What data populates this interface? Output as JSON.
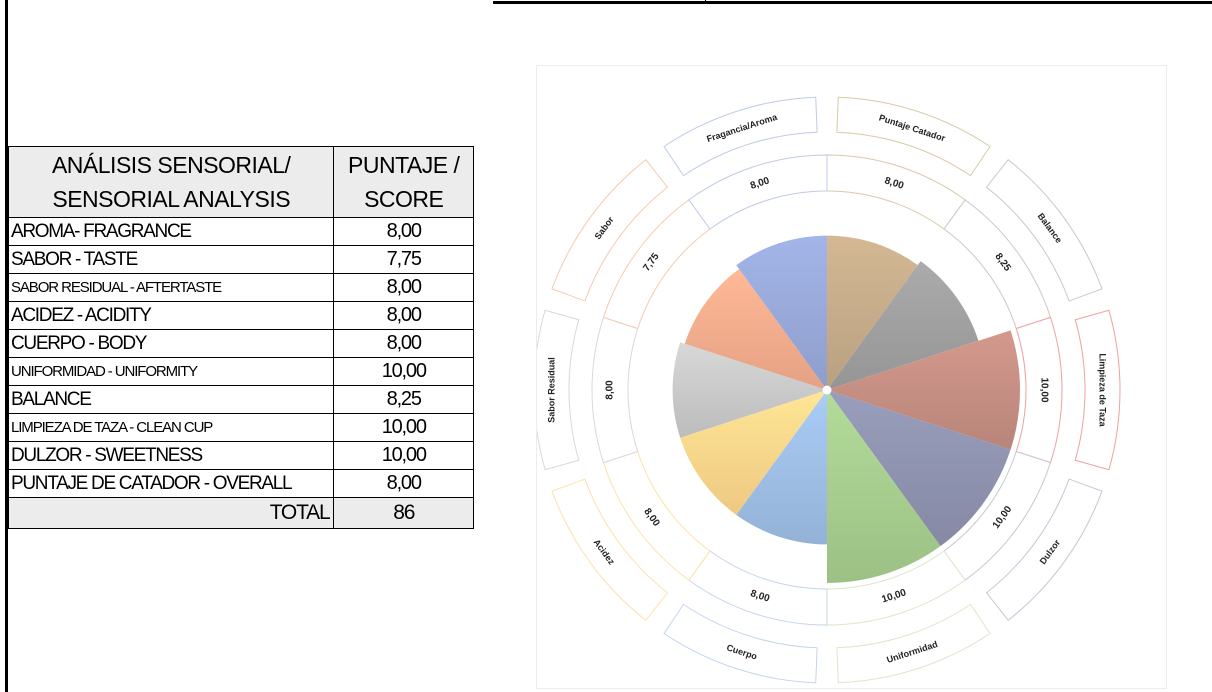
{
  "table": {
    "header": {
      "label_line1": "ANÁLISIS SENSORIAL/",
      "label_line2": "SENSORIAL ANALYSIS",
      "score_line1": "PUNTAJE /",
      "score_line2": "SCORE"
    },
    "rows": [
      {
        "label": "AROMA- FRAGRANCE",
        "value": "8,00"
      },
      {
        "label": "SABOR - TASTE",
        "value": "7,75"
      },
      {
        "label": "SABOR RESIDUAL - AFTERTASTE",
        "value": "8,00"
      },
      {
        "label": "ACIDEZ - ACIDITY",
        "value": "8,00"
      },
      {
        "label": "CUERPO - BODY",
        "value": "8,00"
      },
      {
        "label": "UNIFORMIDAD - UNIFORMITY",
        "value": "10,00"
      },
      {
        "label": "BALANCE",
        "value": "8,25"
      },
      {
        "label": "LIMPIEZA DE TAZA - CLEAN CUP",
        "value": "10,00"
      },
      {
        "label": "DULZOR - SWEETNESS",
        "value": "10,00"
      },
      {
        "label": "PUNTAJE DE CATADOR - OVERALL",
        "value": "8,00"
      }
    ],
    "total_label": "TOTAL",
    "total_value": "86"
  },
  "chart_data": {
    "type": "pie",
    "subtype": "polar-area (sunburst-style with value and label rings)",
    "title": "",
    "categories": [
      "Puntaje Catador",
      "Balance",
      "Limpieza de Taza",
      "Dulzor",
      "Uniformidad",
      "Cuerpo",
      "Acidez",
      "Sabor Residual",
      "Sabor",
      "Fragancia/Aroma"
    ],
    "values": [
      8.0,
      8.25,
      10.0,
      10.0,
      10.0,
      8.0,
      8.0,
      8.0,
      7.75,
      8.0
    ],
    "value_labels": [
      "8,00",
      "8,25",
      "10,00",
      "10,00",
      "10,00",
      "8,00",
      "8,00",
      "8,00",
      "7,75",
      "8,00"
    ],
    "colors": [
      "#c4aa88",
      "#9e9e9e",
      "#c48e82",
      "#8e92ae",
      "#a6cc8e",
      "#9dbde4",
      "#fdd58a",
      "#c8c8c8",
      "#f4ab8c",
      "#97a8d8"
    ],
    "ring_colors": [
      "#d9c9a8",
      "#c8c8c8",
      "#f0a0a0",
      "#c4c6d4",
      "#d8e8c8",
      "#c6d4ee",
      "#fde2a8",
      "#d8d8d8",
      "#f8c8b0",
      "#c0cae8"
    ],
    "start_angle_deg": 0,
    "direction": "clockwise",
    "value_range": [
      0,
      10
    ],
    "legend": "none (labels in outer ring)"
  }
}
